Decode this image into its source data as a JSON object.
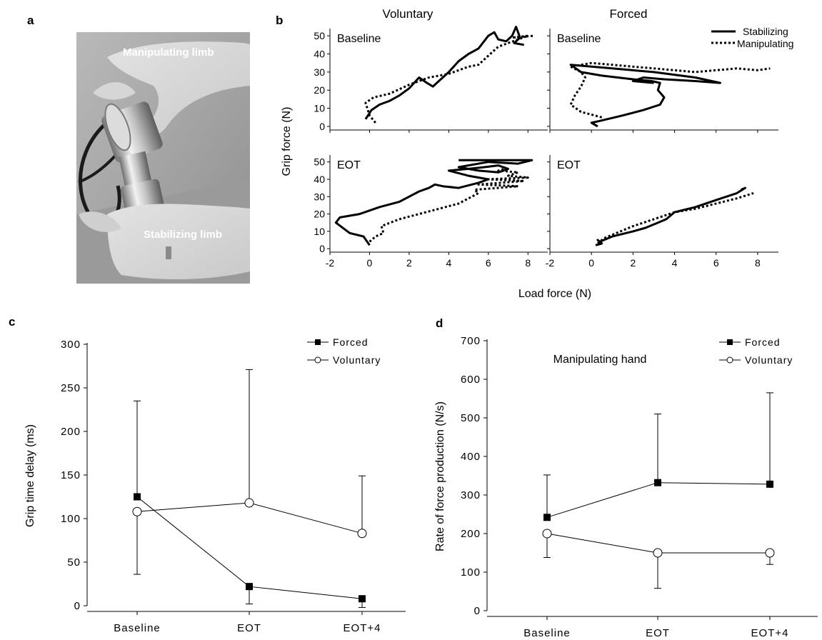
{
  "panels": {
    "a": {
      "letter": "a",
      "photo_labels": {
        "top": "Manipulating limb",
        "bottom": "Stabilizing limb"
      }
    },
    "b": {
      "letter": "b"
    },
    "c": {
      "letter": "c"
    },
    "d": {
      "letter": "d"
    }
  },
  "chart_data": [
    {
      "panel": "b",
      "type": "line",
      "column_titles": [
        "Voluntary",
        "Forced"
      ],
      "row_titles": [
        "Baseline",
        "EOT"
      ],
      "xlabel": "Load force (N)",
      "ylabel": "Grip force (N)",
      "xlim": [
        -2,
        9
      ],
      "ylim": [
        -2,
        54
      ],
      "xticks": [
        -2,
        0,
        2,
        4,
        6,
        8
      ],
      "yticks": [
        0,
        10,
        20,
        30,
        40,
        50
      ],
      "legend": [
        "Stabilizing",
        "Manipulating"
      ],
      "legend_position": "top-right",
      "subplots": [
        {
          "row": "Baseline",
          "col": "Voluntary",
          "series": [
            {
              "name": "Stabilizing",
              "x": [
                -0.2,
                0.1,
                0.5,
                1.0,
                1.5,
                2.0,
                2.5,
                2.9,
                3.2,
                3.5,
                4.0,
                4.5,
                5.0,
                5.5,
                6.0,
                6.3,
                6.5,
                6.9,
                7.2,
                7.4,
                7.6,
                7.3,
                7.8
              ],
              "y": [
                4,
                9,
                12,
                14,
                17,
                21,
                27,
                24,
                22,
                25,
                30,
                36,
                40,
                43,
                50,
                52,
                48,
                47,
                50,
                55,
                49,
                46,
                45
              ]
            },
            {
              "name": "Manipulating",
              "x": [
                0.3,
                0.0,
                -0.2,
                0.2,
                1.0,
                2.0,
                3.0,
                4.0,
                5.0,
                5.5,
                6.0,
                6.5,
                7.0,
                7.5,
                8.0,
                7.2,
                8.3
              ],
              "y": [
                2,
                6,
                13,
                16,
                18,
                23,
                27,
                29,
                33,
                34,
                39,
                44,
                46,
                48,
                50,
                49,
                50
              ]
            }
          ]
        },
        {
          "row": "Baseline",
          "col": "Forced",
          "series": [
            {
              "name": "Stabilizing",
              "x": [
                0.3,
                0.0,
                0.4,
                1.5,
                2.5,
                3.3,
                3.5,
                3.2,
                3.3,
                2.9,
                2.0,
                0.5,
                -0.5,
                -1.0,
                1.0,
                3.0,
                5.0,
                6.2,
                5.0,
                3.5,
                2.5,
                2.0,
                3.0
              ],
              "y": [
                0,
                2,
                3,
                6,
                9,
                12,
                16,
                20,
                24,
                25,
                26,
                28,
                30,
                34,
                32,
                30,
                27,
                24,
                25,
                26,
                27,
                25,
                24
              ]
            },
            {
              "name": "Manipulating",
              "x": [
                0.5,
                -0.5,
                -1.0,
                -0.8,
                -0.5,
                -0.3,
                -0.5,
                -1.0,
                0.0,
                1.0,
                2.0,
                3.0,
                4.0,
                5.0,
                6.0,
                7.0,
                8.0,
                8.6
              ],
              "y": [
                5,
                8,
                12,
                17,
                22,
                27,
                30,
                33,
                35,
                34,
                33,
                32,
                31,
                30,
                31,
                32,
                31,
                32
              ]
            }
          ]
        },
        {
          "row": "EOT",
          "col": "Voluntary",
          "series": [
            {
              "name": "Stabilizing",
              "x": [
                0.0,
                -0.3,
                -1.0,
                -1.7,
                -1.5,
                -0.5,
                0.5,
                1.5,
                2.0,
                2.5,
                3.0,
                3.3,
                3.7,
                4.5,
                5.5,
                6.0,
                5.0,
                4.0,
                5.0,
                5.8,
                6.5,
                7.0,
                6.5,
                5.5,
                4.5,
                6.0,
                7.5,
                8.2,
                6.0,
                4.5
              ],
              "y": [
                2,
                7,
                9,
                15,
                18,
                20,
                24,
                27,
                30,
                33,
                35,
                37,
                36,
                35,
                38,
                40,
                42,
                45,
                46,
                47,
                48,
                46,
                44,
                45,
                47,
                50,
                49,
                51,
                51,
                51
              ]
            },
            {
              "name": "Manipulating",
              "x": [
                0.0,
                0.3,
                0.7,
                0.6,
                1.5,
                2.5,
                3.5,
                4.5,
                5.0,
                5.5,
                5.3,
                6.5,
                7.5,
                5.5,
                7.8,
                6.0,
                8.0,
                7.0,
                7.5,
                6.5,
                6.8
              ],
              "y": [
                4,
                7,
                9,
                13,
                17,
                20,
                23,
                26,
                29,
                32,
                34,
                35,
                36,
                37,
                39,
                40,
                41,
                42,
                44,
                45,
                46
              ]
            }
          ]
        },
        {
          "row": "EOT",
          "col": "Forced",
          "series": [
            {
              "name": "Stabilizing",
              "x": [
                0.2,
                0.5,
                0.3,
                0.4,
                1.0,
                2.0,
                2.6,
                3.2,
                3.6,
                4.0,
                5.0,
                6.0,
                7.0,
                7.4,
                7.2
              ],
              "y": [
                2,
                3,
                5,
                4,
                7,
                10,
                12,
                15,
                17,
                21,
                24,
                28,
                32,
                35,
                34
              ]
            },
            {
              "name": "Manipulating",
              "x": [
                0.3,
                0.6,
                1.0,
                2.0,
                3.0,
                4.0,
                5.0,
                6.0,
                7.0,
                7.8
              ],
              "y": [
                3,
                6,
                8,
                13,
                17,
                21,
                23,
                26,
                29,
                32
              ]
            }
          ]
        }
      ]
    },
    {
      "panel": "c",
      "type": "line",
      "categories": [
        "Baseline",
        "EOT",
        "EOT+4"
      ],
      "ylabel": "Grip time delay (ms)",
      "xlabel": "",
      "ylim": [
        0,
        300
      ],
      "yticks": [
        0,
        50,
        100,
        150,
        200,
        250,
        300
      ],
      "legend_position": "top-right",
      "series": [
        {
          "name": "Forced",
          "marker": "square-filled",
          "values": [
            125,
            22,
            8
          ],
          "error": [
            110,
            20,
            10
          ]
        },
        {
          "name": "Voluntary",
          "marker": "circle-open",
          "values": [
            108,
            118,
            83
          ],
          "error": [
            72,
            153,
            66
          ]
        }
      ]
    },
    {
      "panel": "d",
      "type": "line",
      "title": "Manipulating hand",
      "categories": [
        "Baseline",
        "EOT",
        "EOT+4"
      ],
      "ylabel": "Rate of force production (N/s)",
      "xlabel": "",
      "ylim": [
        0,
        700
      ],
      "yticks": [
        0,
        100,
        200,
        300,
        400,
        500,
        600,
        700
      ],
      "legend_position": "top-right",
      "series": [
        {
          "name": "Forced",
          "marker": "square-filled",
          "values": [
            242,
            332,
            328
          ],
          "error": [
            110,
            178,
            237
          ]
        },
        {
          "name": "Voluntary",
          "marker": "circle-open",
          "values": [
            200,
            150,
            150
          ],
          "error": [
            62,
            92,
            30
          ]
        }
      ]
    }
  ]
}
